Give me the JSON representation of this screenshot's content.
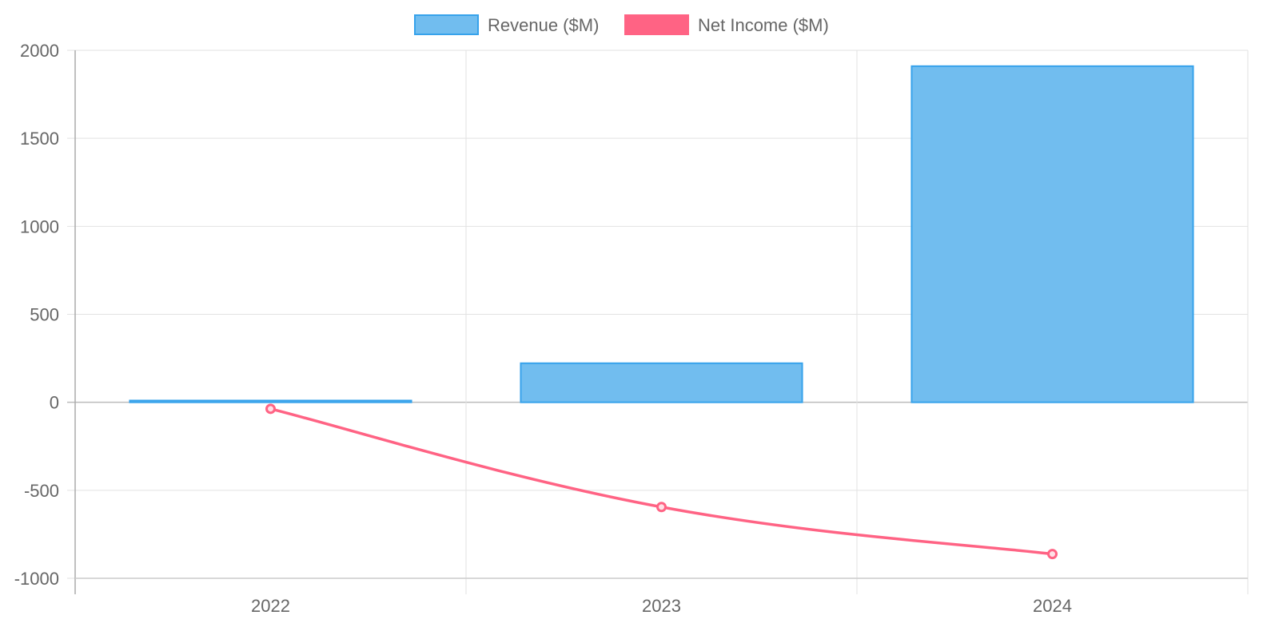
{
  "chart_data": {
    "type": "bar",
    "title": "",
    "categories": [
      "2022",
      "2023",
      "2024"
    ],
    "series": [
      {
        "name": "Revenue ($M)",
        "type": "bar",
        "values": [
          10,
          222,
          1910
        ],
        "color": "#36a2eb",
        "fill": "#71bdef"
      },
      {
        "name": "Net Income ($M)",
        "type": "line",
        "values": [
          -37,
          -595,
          -862
        ],
        "color": "#ff6384"
      }
    ],
    "xlabel": "",
    "ylabel": "",
    "ylim": [
      -1000,
      2000
    ],
    "yticks": [
      "2000",
      "1500",
      "1000",
      "500",
      "0",
      "-500",
      "-1000"
    ],
    "grid": true,
    "legend": "top-center"
  }
}
